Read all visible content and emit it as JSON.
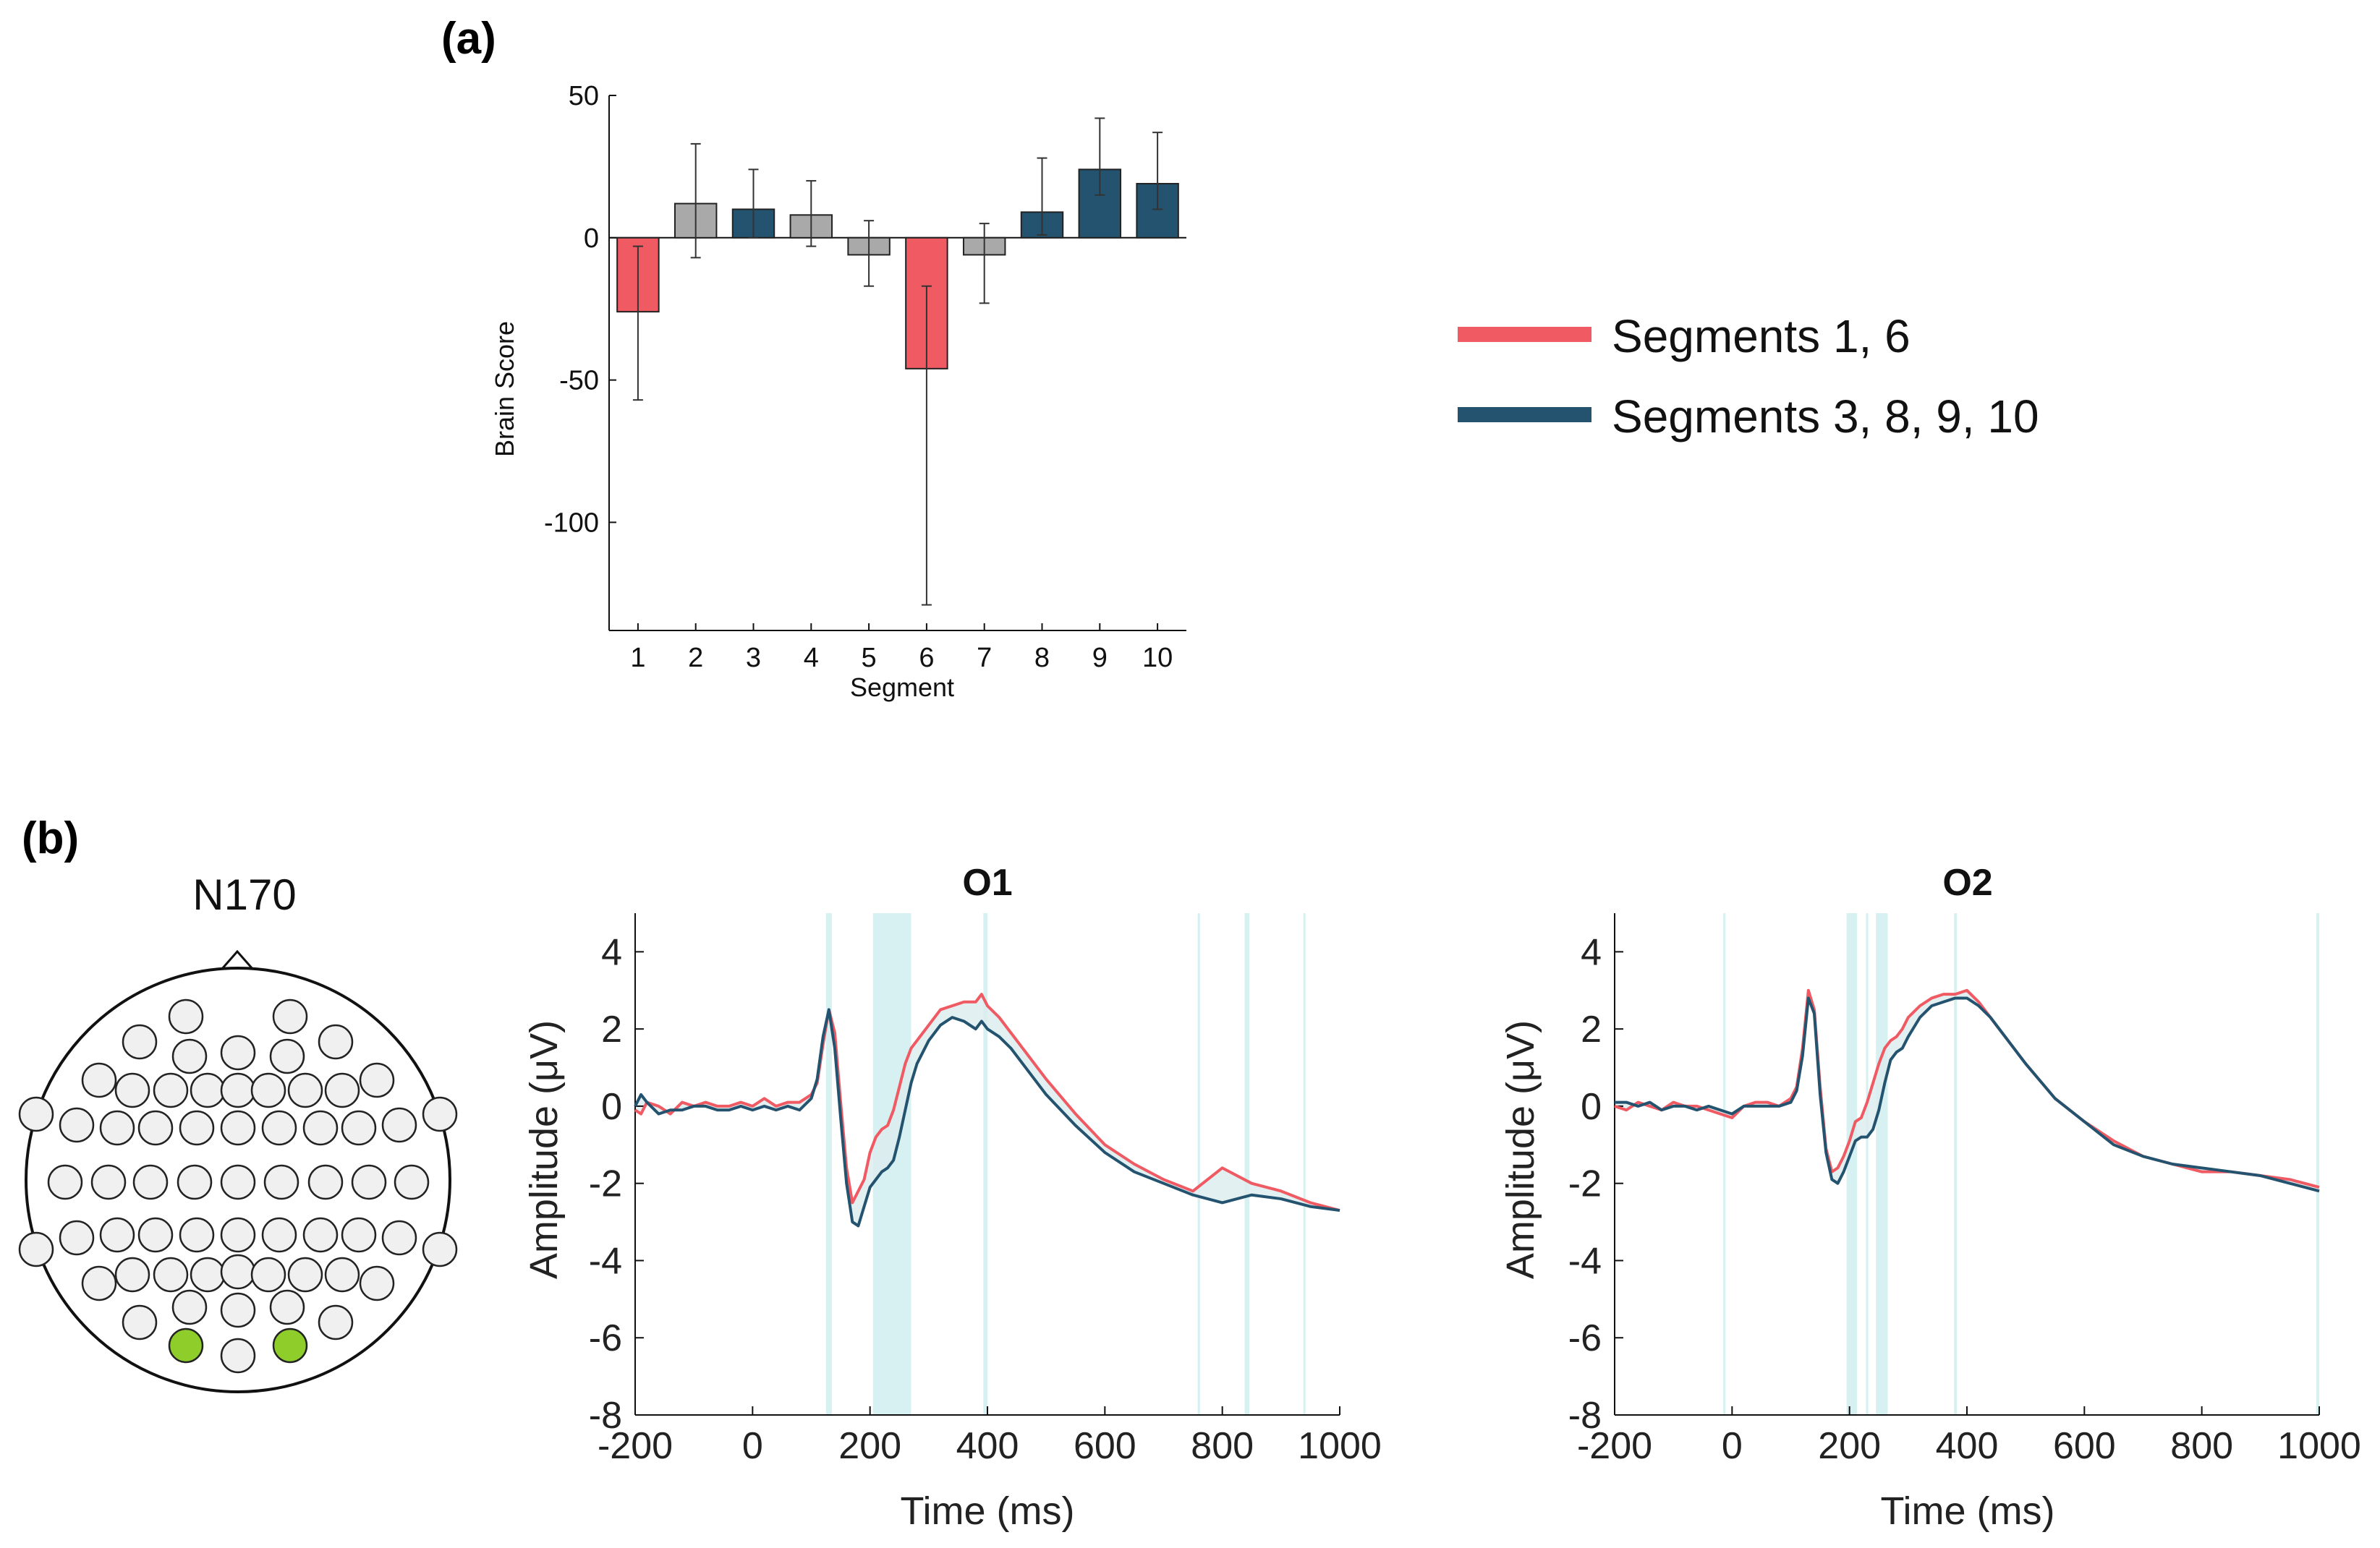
{
  "panel_a_label": "(a)",
  "panel_b_label": "(b)",
  "colors": {
    "red": "#ef5a63",
    "blue": "#23536f",
    "gray": "#a9a9a9",
    "shade": "#d7f0f1",
    "electrode_active": "#8fce2a",
    "electrode": "#f0f0f0"
  },
  "legend": [
    {
      "label": "Segments 1, 6",
      "color": "#ef5a63"
    },
    {
      "label": "Segments 3, 8, 9, 10",
      "color": "#23536f"
    }
  ],
  "topo": {
    "title": "N170",
    "active_electrodes": [
      "O1",
      "O2"
    ]
  },
  "chart_data": [
    {
      "type": "bar",
      "ylabel": "Brain Score",
      "xlabel": "Segment",
      "ylim": [
        -138,
        50
      ],
      "yticks": [
        50,
        0,
        -50,
        -100
      ],
      "categories": [
        "1",
        "2",
        "3",
        "4",
        "5",
        "6",
        "7",
        "8",
        "9",
        "10"
      ],
      "values": [
        -26,
        12,
        10,
        8,
        -6,
        -46,
        -6,
        9,
        24,
        19
      ],
      "err_low": [
        -57,
        -7,
        0,
        -3,
        -17,
        -129,
        -23,
        1,
        15,
        10
      ],
      "err_high": [
        -3,
        33,
        24,
        20,
        6,
        -17,
        5,
        28,
        42,
        37
      ],
      "bar_colors": [
        "red",
        "gray",
        "blue",
        "gray",
        "gray",
        "red",
        "gray",
        "blue",
        "blue",
        "blue"
      ]
    },
    {
      "type": "line",
      "title": "O1",
      "xlabel": "Time (ms)",
      "ylabel": "Amplitude (μV)",
      "xlim": [
        -200,
        1000
      ],
      "ylim": [
        -8,
        5
      ],
      "xticks": [
        -200,
        0,
        200,
        400,
        600,
        800,
        1000
      ],
      "yticks": [
        4,
        2,
        0,
        -2,
        -4,
        -6,
        -8
      ],
      "shaded_ms": [
        [
          125,
          135
        ],
        [
          205,
          270
        ],
        [
          393,
          400
        ],
        [
          758,
          762
        ],
        [
          838,
          846
        ],
        [
          938,
          940
        ]
      ],
      "series": [
        {
          "name": "Segments 1, 6",
          "color": "red",
          "x": [
            -200,
            -190,
            -180,
            -160,
            -140,
            -120,
            -100,
            -80,
            -60,
            -40,
            -20,
            0,
            20,
            40,
            60,
            80,
            100,
            110,
            120,
            130,
            140,
            150,
            160,
            170,
            180,
            190,
            200,
            210,
            220,
            230,
            240,
            250,
            260,
            270,
            280,
            290,
            300,
            320,
            340,
            360,
            380,
            390,
            400,
            420,
            440,
            460,
            480,
            500,
            550,
            600,
            650,
            700,
            750,
            800,
            850,
            900,
            950,
            1000
          ],
          "y": [
            -0.1,
            -0.2,
            0.1,
            0,
            -0.2,
            0.1,
            0,
            0.1,
            0,
            0,
            0.1,
            0,
            0.2,
            0,
            0.1,
            0.1,
            0.3,
            0.6,
            1.6,
            2.5,
            1.9,
            0.1,
            -1.6,
            -2.5,
            -2.2,
            -1.9,
            -1.2,
            -0.8,
            -0.6,
            -0.5,
            -0.1,
            0.5,
            1.1,
            1.5,
            1.7,
            1.9,
            2.1,
            2.5,
            2.6,
            2.7,
            2.7,
            2.9,
            2.6,
            2.3,
            1.9,
            1.5,
            1.1,
            0.7,
            -0.2,
            -1,
            -1.5,
            -1.9,
            -2.2,
            -1.6,
            -2,
            -2.2,
            -2.5,
            -2.7
          ]
        },
        {
          "name": "Segments 3, 8, 9, 10",
          "color": "blue",
          "x": [
            -200,
            -190,
            -180,
            -160,
            -140,
            -120,
            -100,
            -80,
            -60,
            -40,
            -20,
            0,
            20,
            40,
            60,
            80,
            100,
            110,
            120,
            130,
            140,
            150,
            160,
            170,
            180,
            190,
            200,
            210,
            220,
            230,
            240,
            250,
            260,
            270,
            280,
            290,
            300,
            320,
            340,
            360,
            380,
            390,
            400,
            420,
            440,
            460,
            480,
            500,
            550,
            600,
            650,
            700,
            750,
            800,
            850,
            900,
            950,
            1000
          ],
          "y": [
            0,
            0.3,
            0.1,
            -0.2,
            -0.1,
            -0.1,
            0,
            0,
            -0.1,
            -0.1,
            0,
            -0.1,
            0,
            -0.1,
            0,
            -0.1,
            0.2,
            0.7,
            1.8,
            2.5,
            1.5,
            -0.3,
            -2,
            -3,
            -3.1,
            -2.6,
            -2.1,
            -1.9,
            -1.7,
            -1.6,
            -1.4,
            -0.8,
            -0.1,
            0.6,
            1.1,
            1.4,
            1.7,
            2.1,
            2.3,
            2.2,
            2.0,
            2.2,
            2.0,
            1.8,
            1.5,
            1.1,
            0.7,
            0.3,
            -0.5,
            -1.2,
            -1.7,
            -2,
            -2.3,
            -2.5,
            -2.3,
            -2.4,
            -2.6,
            -2.7
          ]
        }
      ]
    },
    {
      "type": "line",
      "title": "O2",
      "xlabel": "Time (ms)",
      "ylabel": "Amplitude (μV)",
      "xlim": [
        -200,
        1000
      ],
      "ylim": [
        -8,
        5
      ],
      "xticks": [
        -200,
        0,
        200,
        400,
        600,
        800,
        1000
      ],
      "yticks": [
        4,
        2,
        0,
        -2,
        -4,
        -6,
        -8
      ],
      "shaded_ms": [
        [
          -15,
          -12
        ],
        [
          195,
          213
        ],
        [
          228,
          232
        ],
        [
          245,
          265
        ],
        [
          378,
          383
        ],
        [
          995,
          1000
        ]
      ],
      "series": [
        {
          "name": "Segments 1, 6",
          "color": "red",
          "x": [
            -200,
            -180,
            -160,
            -140,
            -120,
            -100,
            -80,
            -60,
            -40,
            -20,
            0,
            20,
            40,
            60,
            80,
            100,
            110,
            120,
            130,
            140,
            150,
            160,
            170,
            180,
            190,
            200,
            210,
            220,
            230,
            240,
            250,
            260,
            270,
            280,
            290,
            300,
            320,
            340,
            360,
            380,
            400,
            420,
            440,
            460,
            480,
            500,
            550,
            600,
            650,
            700,
            750,
            800,
            850,
            900,
            950,
            1000
          ],
          "y": [
            0,
            -0.1,
            0.1,
            0,
            -0.1,
            0.1,
            0,
            0,
            -0.1,
            -0.2,
            -0.3,
            0,
            0.1,
            0.1,
            0,
            0.2,
            0.5,
            1.5,
            3.0,
            2.5,
            0.5,
            -1.1,
            -1.7,
            -1.6,
            -1.3,
            -0.9,
            -0.4,
            -0.3,
            0.1,
            0.6,
            1.1,
            1.5,
            1.7,
            1.8,
            2.0,
            2.3,
            2.6,
            2.8,
            2.9,
            2.9,
            3.0,
            2.7,
            2.3,
            1.9,
            1.5,
            1.1,
            0.2,
            -0.4,
            -0.9,
            -1.3,
            -1.5,
            -1.7,
            -1.7,
            -1.8,
            -1.9,
            -2.1
          ]
        },
        {
          "name": "Segments 3, 8, 9, 10",
          "color": "blue",
          "x": [
            -200,
            -180,
            -160,
            -140,
            -120,
            -100,
            -80,
            -60,
            -40,
            -20,
            0,
            20,
            40,
            60,
            80,
            100,
            110,
            120,
            130,
            140,
            150,
            160,
            170,
            180,
            190,
            200,
            210,
            220,
            230,
            240,
            250,
            260,
            270,
            280,
            290,
            300,
            320,
            340,
            360,
            380,
            400,
            420,
            440,
            460,
            480,
            500,
            550,
            600,
            650,
            700,
            750,
            800,
            850,
            900,
            950,
            1000
          ],
          "y": [
            0.1,
            0.1,
            0,
            0.1,
            -0.1,
            0,
            0,
            -0.1,
            0,
            -0.1,
            -0.2,
            0,
            0,
            0,
            0,
            0.1,
            0.4,
            1.3,
            2.8,
            2.4,
            0.3,
            -1.2,
            -1.9,
            -2.0,
            -1.7,
            -1.3,
            -0.9,
            -0.8,
            -0.8,
            -0.6,
            -0.1,
            0.6,
            1.2,
            1.4,
            1.5,
            1.8,
            2.3,
            2.6,
            2.7,
            2.8,
            2.8,
            2.6,
            2.3,
            1.9,
            1.5,
            1.1,
            0.2,
            -0.4,
            -1.0,
            -1.3,
            -1.5,
            -1.6,
            -1.7,
            -1.8,
            -2.0,
            -2.2
          ]
        }
      ]
    }
  ]
}
